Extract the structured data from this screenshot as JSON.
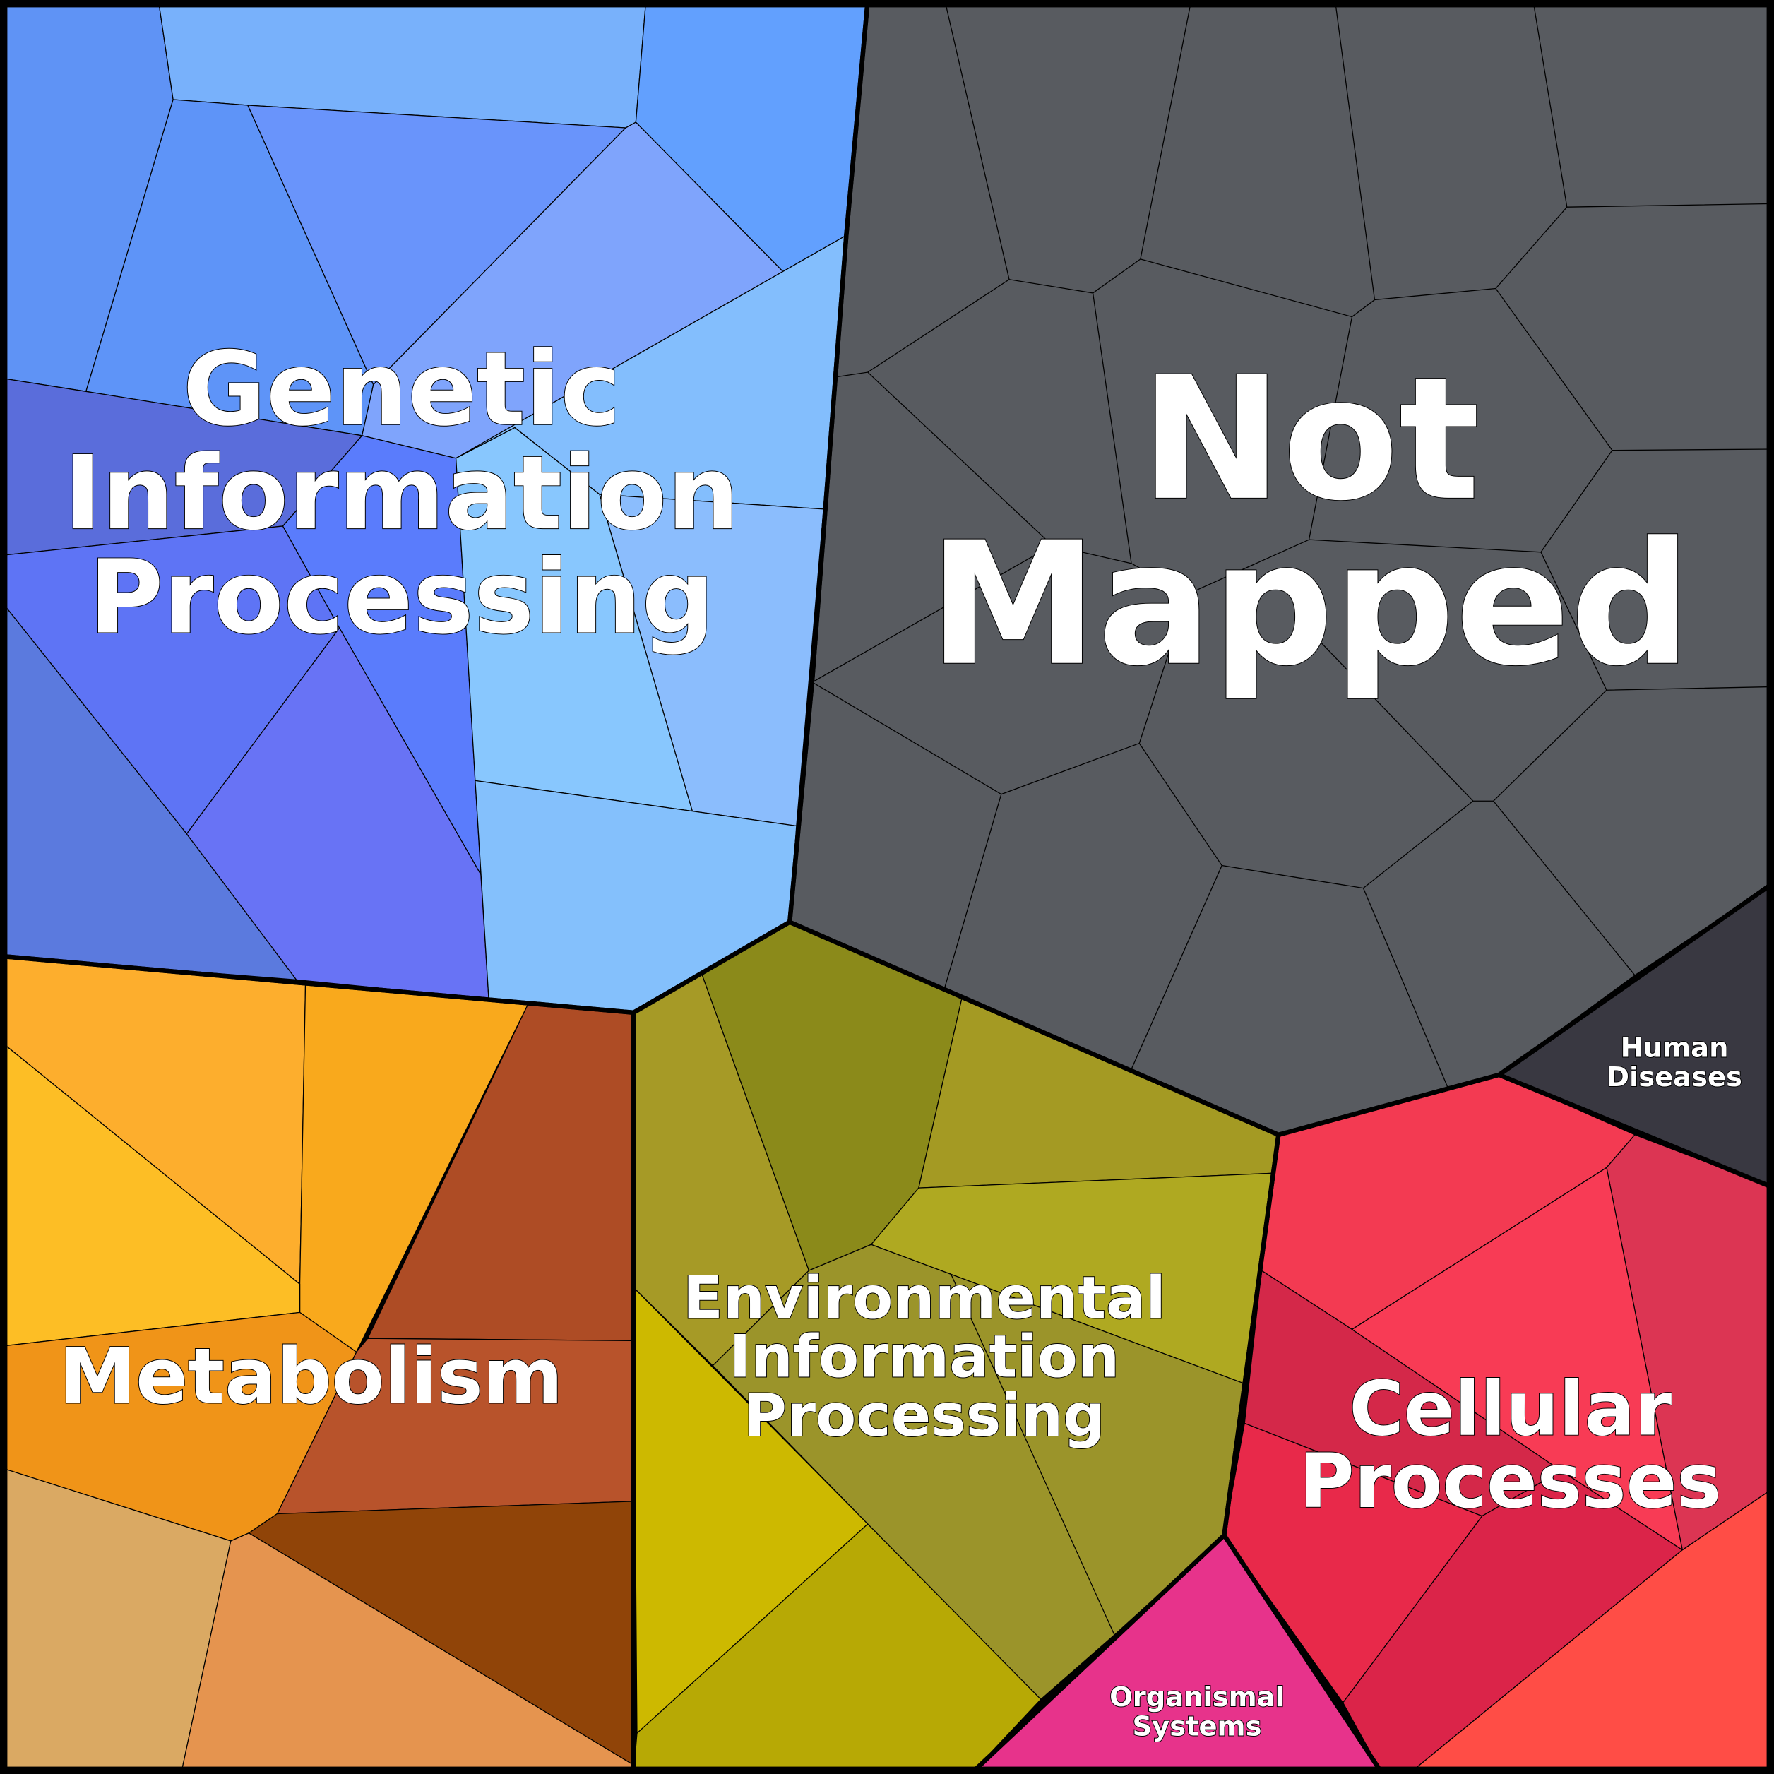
{
  "regions": [
    {
      "lines": [
        "Genetic",
        "Information",
        "Processing"
      ]
    },
    {
      "lines": [
        "Not",
        "Mapped"
      ]
    },
    {
      "lines": [
        "Metabolism"
      ]
    },
    {
      "lines": [
        "Environmental",
        "Information",
        "Processing"
      ]
    },
    {
      "lines": [
        "Cellular",
        "Processes"
      ]
    },
    {
      "lines": [
        "Human",
        "Diseases"
      ]
    },
    {
      "lines": [
        "Organismal",
        "Systems"
      ]
    }
  ]
}
